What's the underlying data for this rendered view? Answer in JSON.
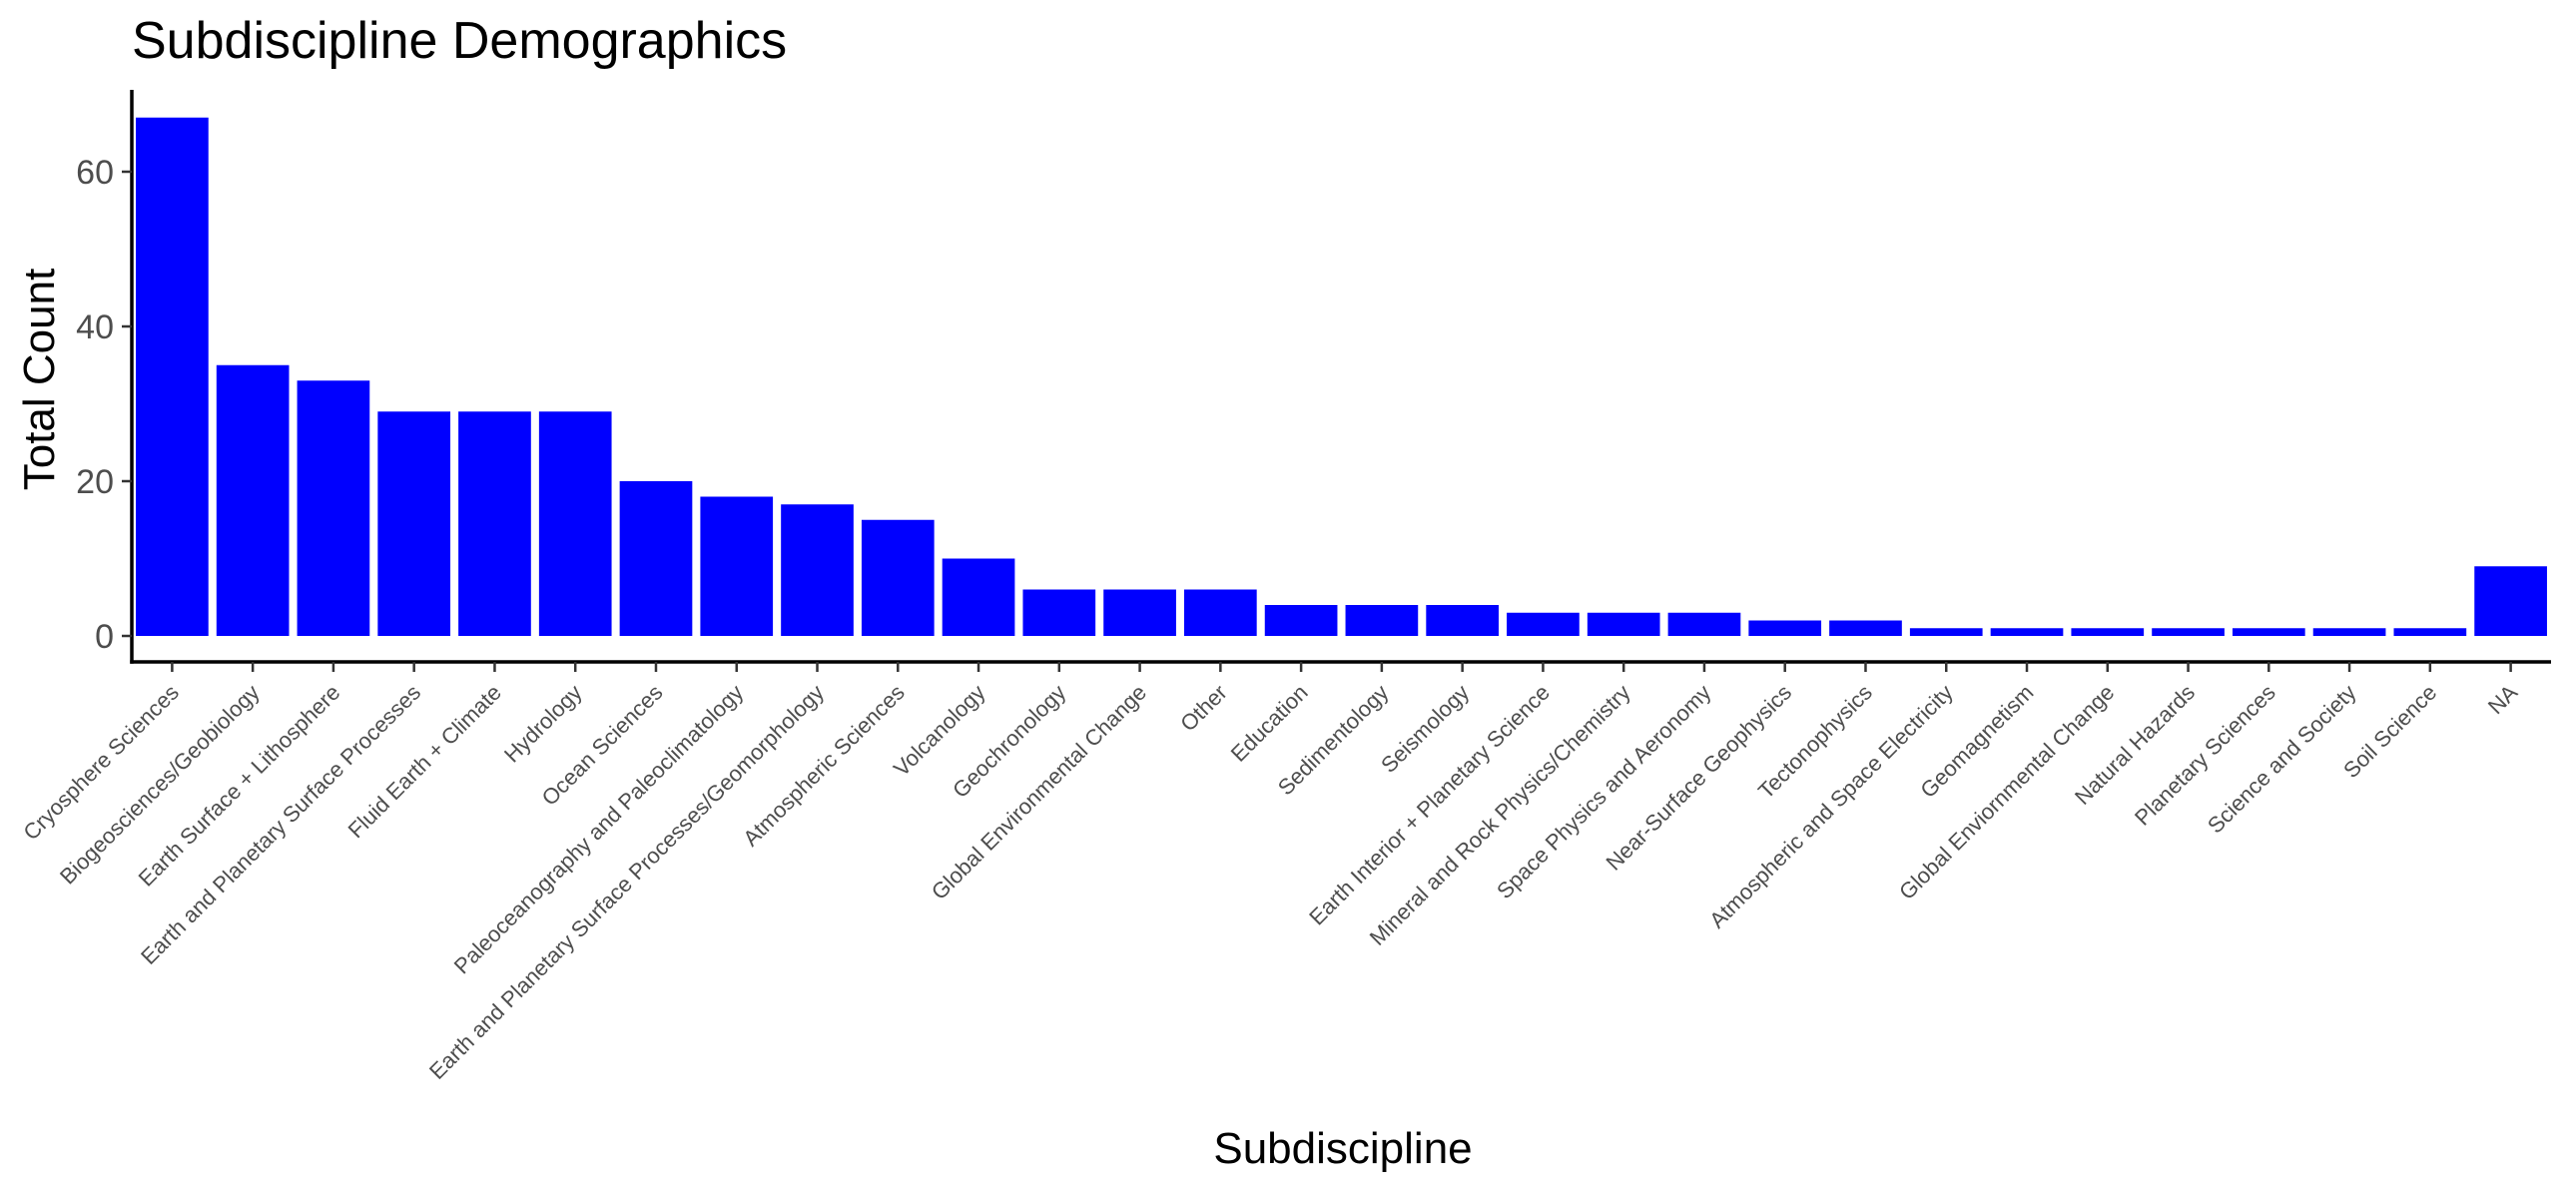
{
  "chart_data": {
    "type": "bar",
    "title": "Subdiscipline Demographics",
    "xlabel": "Subdiscipline",
    "ylabel": "Total Count",
    "ylim": [
      0,
      70
    ],
    "yticks": [
      0,
      20,
      40,
      60
    ],
    "grid": false,
    "legend": "none",
    "bar_color": "#0000ff",
    "categories": [
      "Cryosphere Sciences",
      "Biogeosciences/Geobiology",
      "Earth Surface + Lithosphere",
      "Earth and Planetary Surface Processes",
      "Fluid Earth + Climate",
      "Hydrology",
      "Ocean Sciences",
      "Paleoceanography and Paleoclimatology",
      "Earth and Planetary Surface Processes/Geomorphology",
      "Atmospheric Sciences",
      "Volcanology",
      "Geochronology",
      "Global Environmental Change",
      "Other",
      "Education",
      "Sedimentology",
      "Seismology",
      "Earth Interior + Planetary Science",
      "Mineral and Rock Physics/Chemistry",
      "Space Physics and Aeronomy",
      "Near-Surface Geophysics",
      "Tectonophysics",
      "Atmospheric and Space Electricity",
      "Geomagnetism",
      "Global Enviornmental Change",
      "Natural Hazards",
      "Planetary Sciences",
      "Science and Society",
      "Soil Science",
      "NA"
    ],
    "values": [
      67,
      35,
      33,
      29,
      29,
      29,
      20,
      18,
      17,
      15,
      10,
      6,
      6,
      6,
      4,
      4,
      4,
      3,
      3,
      3,
      2,
      2,
      1,
      1,
      1,
      1,
      1,
      1,
      1,
      9
    ]
  }
}
